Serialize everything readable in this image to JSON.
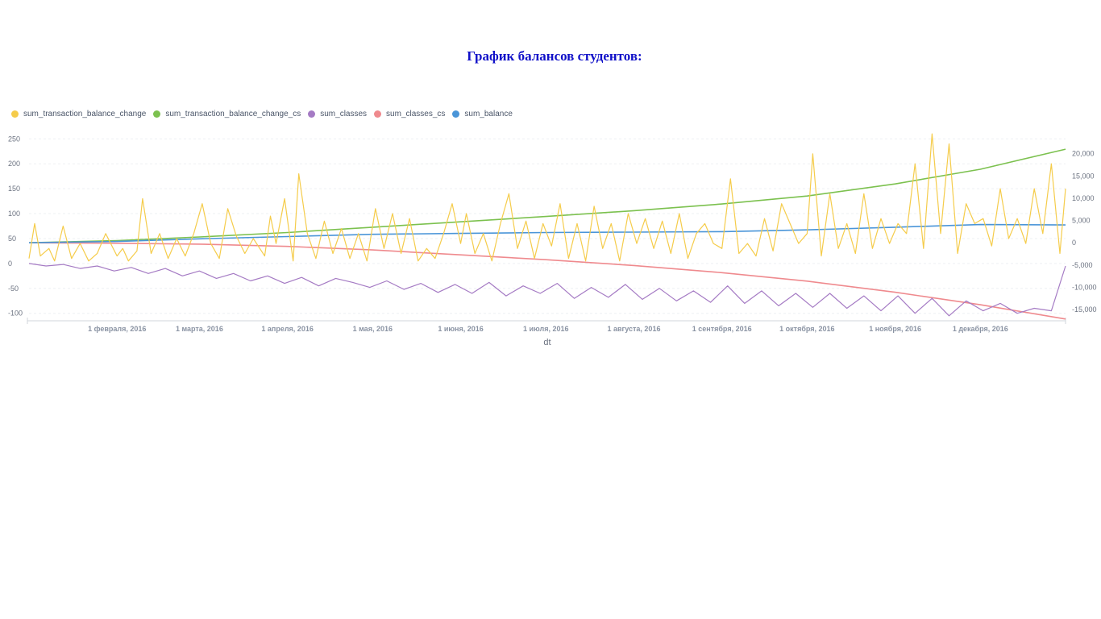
{
  "page": {
    "title": "График балансов студентов:"
  },
  "colors": {
    "sum_transaction_balance_change": "#f5cc4b",
    "sum_transaction_balance_change_cs": "#7cc14f",
    "sum_classes": "#a57bc4",
    "sum_classes_cs": "#ef8a8e",
    "sum_balance": "#4a95d8",
    "grid": "#eef0f3",
    "axis_text": "#6b7280"
  },
  "chart_data": {
    "type": "line",
    "title": "",
    "xlabel": "dt",
    "x_range": [
      "2016-01-01",
      "2016-12-31"
    ],
    "x_ticks": [
      {
        "date": "2016-02-01",
        "label": "1 февраля, 2016"
      },
      {
        "date": "2016-03-01",
        "label": "1 марта, 2016"
      },
      {
        "date": "2016-04-01",
        "label": "1 апреля, 2016"
      },
      {
        "date": "2016-05-01",
        "label": "1 мая, 2016"
      },
      {
        "date": "2016-06-01",
        "label": "1 июня, 2016"
      },
      {
        "date": "2016-07-01",
        "label": "1 июля, 2016"
      },
      {
        "date": "2016-08-01",
        "label": "1 августа, 2016"
      },
      {
        "date": "2016-09-01",
        "label": "1 сентября, 2016"
      },
      {
        "date": "2016-10-01",
        "label": "1 октября, 2016"
      },
      {
        "date": "2016-11-01",
        "label": "1 ноября, 2016"
      },
      {
        "date": "2016-12-01",
        "label": "1 декабря, 2016"
      }
    ],
    "y_left": {
      "range": [
        -115,
        265
      ],
      "ticks": [
        -100,
        -50,
        0,
        50,
        100,
        150,
        200,
        250
      ],
      "labels": [
        "-100",
        "-50",
        "0",
        "50",
        "100",
        "150",
        "200",
        "250"
      ]
    },
    "y_right": {
      "range": [
        -17500,
        25000
      ],
      "ticks": [
        -15000,
        -10000,
        -5000,
        0,
        5000,
        10000,
        15000,
        20000
      ],
      "labels": [
        "-15,000",
        "-10,000",
        "-5,000",
        "0",
        "5,000",
        "10,000",
        "15,000",
        "20,000"
      ]
    },
    "grid": true,
    "legend_position": "top-left",
    "series": [
      {
        "name": "sum_transaction_balance_change",
        "axis": "left",
        "color_key": "sum_transaction_balance_change",
        "x": [
          "2016-01-01",
          "2016-01-03",
          "2016-01-05",
          "2016-01-08",
          "2016-01-10",
          "2016-01-13",
          "2016-01-16",
          "2016-01-19",
          "2016-01-22",
          "2016-01-25",
          "2016-01-28",
          "2016-02-01",
          "2016-02-03",
          "2016-02-05",
          "2016-02-08",
          "2016-02-10",
          "2016-02-13",
          "2016-02-16",
          "2016-02-19",
          "2016-02-22",
          "2016-02-25",
          "2016-02-28",
          "2016-03-02",
          "2016-03-05",
          "2016-03-08",
          "2016-03-11",
          "2016-03-14",
          "2016-03-17",
          "2016-03-20",
          "2016-03-24",
          "2016-03-26",
          "2016-03-28",
          "2016-03-31",
          "2016-04-03",
          "2016-04-05",
          "2016-04-08",
          "2016-04-11",
          "2016-04-14",
          "2016-04-17",
          "2016-04-20",
          "2016-04-23",
          "2016-04-26",
          "2016-04-29",
          "2016-05-02",
          "2016-05-05",
          "2016-05-08",
          "2016-05-11",
          "2016-05-14",
          "2016-05-17",
          "2016-05-20",
          "2016-05-23",
          "2016-05-26",
          "2016-05-29",
          "2016-06-01",
          "2016-06-03",
          "2016-06-06",
          "2016-06-09",
          "2016-06-12",
          "2016-06-15",
          "2016-06-18",
          "2016-06-21",
          "2016-06-24",
          "2016-06-27",
          "2016-06-30",
          "2016-07-03",
          "2016-07-06",
          "2016-07-09",
          "2016-07-12",
          "2016-07-15",
          "2016-07-18",
          "2016-07-21",
          "2016-07-24",
          "2016-07-27",
          "2016-07-30",
          "2016-08-02",
          "2016-08-05",
          "2016-08-08",
          "2016-08-11",
          "2016-08-14",
          "2016-08-17",
          "2016-08-20",
          "2016-08-23",
          "2016-08-26",
          "2016-08-29",
          "2016-09-01",
          "2016-09-04",
          "2016-09-07",
          "2016-09-10",
          "2016-09-13",
          "2016-09-16",
          "2016-09-19",
          "2016-09-22",
          "2016-09-25",
          "2016-09-28",
          "2016-10-01",
          "2016-10-03",
          "2016-10-06",
          "2016-10-09",
          "2016-10-12",
          "2016-10-15",
          "2016-10-18",
          "2016-10-21",
          "2016-10-24",
          "2016-10-27",
          "2016-10-30",
          "2016-11-02",
          "2016-11-05",
          "2016-11-08",
          "2016-11-11",
          "2016-11-14",
          "2016-11-17",
          "2016-11-20",
          "2016-11-23",
          "2016-11-26",
          "2016-11-29",
          "2016-12-02",
          "2016-12-05",
          "2016-12-08",
          "2016-12-11",
          "2016-12-14",
          "2016-12-17",
          "2016-12-20",
          "2016-12-23",
          "2016-12-26",
          "2016-12-29",
          "2016-12-31"
        ],
        "values": [
          10,
          80,
          15,
          30,
          5,
          75,
          10,
          40,
          5,
          20,
          60,
          15,
          30,
          5,
          25,
          130,
          20,
          60,
          10,
          50,
          15,
          60,
          120,
          40,
          10,
          110,
          55,
          20,
          50,
          15,
          95,
          40,
          130,
          5,
          180,
          60,
          10,
          85,
          20,
          70,
          10,
          60,
          5,
          110,
          30,
          100,
          20,
          90,
          5,
          30,
          10,
          60,
          120,
          40,
          100,
          20,
          60,
          5,
          80,
          140,
          30,
          85,
          10,
          80,
          35,
          120,
          10,
          80,
          5,
          115,
          30,
          80,
          5,
          100,
          40,
          90,
          30,
          85,
          20,
          100,
          10,
          60,
          80,
          40,
          30,
          170,
          20,
          40,
          15,
          90,
          25,
          120,
          80,
          40,
          60,
          220,
          15,
          140,
          30,
          80,
          20,
          140,
          30,
          90,
          40,
          80,
          60,
          200,
          30,
          260,
          60,
          240,
          20,
          120,
          80,
          90,
          35,
          150,
          50,
          90,
          40,
          150,
          60,
          200,
          20,
          150
        ]
      },
      {
        "name": "sum_transaction_balance_change_cs",
        "axis": "right",
        "color_key": "sum_transaction_balance_change_cs",
        "x": [
          "2016-01-01",
          "2016-02-01",
          "2016-03-01",
          "2016-04-01",
          "2016-05-01",
          "2016-06-01",
          "2016-07-01",
          "2016-08-01",
          "2016-09-01",
          "2016-10-01",
          "2016-11-01",
          "2016-12-01",
          "2016-12-31"
        ],
        "values": [
          0,
          500,
          1300,
          2300,
          3500,
          4700,
          5900,
          7200,
          8700,
          10500,
          13200,
          16500,
          21000
        ]
      },
      {
        "name": "sum_classes",
        "axis": "left",
        "color_key": "sum_classes",
        "x": [
          "2016-01-01",
          "2016-01-07",
          "2016-01-13",
          "2016-01-19",
          "2016-01-25",
          "2016-01-31",
          "2016-02-06",
          "2016-02-12",
          "2016-02-18",
          "2016-02-24",
          "2016-03-01",
          "2016-03-07",
          "2016-03-13",
          "2016-03-19",
          "2016-03-25",
          "2016-03-31",
          "2016-04-06",
          "2016-04-12",
          "2016-04-18",
          "2016-04-24",
          "2016-04-30",
          "2016-05-06",
          "2016-05-12",
          "2016-05-18",
          "2016-05-24",
          "2016-05-30",
          "2016-06-05",
          "2016-06-11",
          "2016-06-17",
          "2016-06-23",
          "2016-06-29",
          "2016-07-05",
          "2016-07-11",
          "2016-07-17",
          "2016-07-23",
          "2016-07-29",
          "2016-08-04",
          "2016-08-10",
          "2016-08-16",
          "2016-08-22",
          "2016-08-28",
          "2016-09-03",
          "2016-09-09",
          "2016-09-15",
          "2016-09-21",
          "2016-09-27",
          "2016-10-03",
          "2016-10-09",
          "2016-10-15",
          "2016-10-21",
          "2016-10-27",
          "2016-11-02",
          "2016-11-08",
          "2016-11-14",
          "2016-11-20",
          "2016-11-26",
          "2016-12-02",
          "2016-12-08",
          "2016-12-14",
          "2016-12-20",
          "2016-12-26",
          "2016-12-31"
        ],
        "values": [
          0,
          -5,
          -2,
          -10,
          -5,
          -15,
          -8,
          -20,
          -10,
          -25,
          -15,
          -30,
          -20,
          -35,
          -25,
          -40,
          -28,
          -45,
          -30,
          -38,
          -48,
          -35,
          -52,
          -40,
          -58,
          -42,
          -60,
          -38,
          -65,
          -45,
          -60,
          -40,
          -70,
          -48,
          -68,
          -42,
          -72,
          -50,
          -75,
          -55,
          -78,
          -45,
          -80,
          -55,
          -85,
          -60,
          -88,
          -60,
          -90,
          -65,
          -95,
          -65,
          -100,
          -70,
          -105,
          -75,
          -95,
          -80,
          -100,
          -90,
          -95,
          -5
        ]
      },
      {
        "name": "sum_classes_cs",
        "axis": "right",
        "color_key": "sum_classes_cs",
        "x": [
          "2016-01-01",
          "2016-02-01",
          "2016-03-01",
          "2016-04-01",
          "2016-05-01",
          "2016-06-01",
          "2016-07-01",
          "2016-08-01",
          "2016-09-01",
          "2016-10-01",
          "2016-11-01",
          "2016-12-01",
          "2016-12-31"
        ],
        "values": [
          0,
          -100,
          -300,
          -800,
          -1600,
          -2700,
          -3800,
          -5100,
          -6700,
          -8600,
          -11100,
          -13900,
          -17100
        ]
      },
      {
        "name": "sum_balance",
        "axis": "right",
        "color_key": "sum_balance",
        "x": [
          "2016-01-01",
          "2016-02-01",
          "2016-03-01",
          "2016-04-01",
          "2016-05-01",
          "2016-06-01",
          "2016-07-01",
          "2016-08-01",
          "2016-09-01",
          "2016-10-01",
          "2016-11-01",
          "2016-12-01",
          "2016-12-31"
        ],
        "values": [
          0,
          300,
          900,
          1400,
          1900,
          2100,
          2300,
          2400,
          2500,
          2900,
          3500,
          4100,
          4000
        ]
      }
    ]
  }
}
